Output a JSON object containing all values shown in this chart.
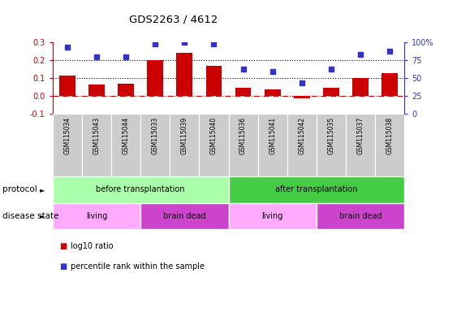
{
  "title": "GDS2263 / 4612",
  "samples": [
    "GSM115034",
    "GSM115043",
    "GSM115044",
    "GSM115033",
    "GSM115039",
    "GSM115040",
    "GSM115036",
    "GSM115041",
    "GSM115042",
    "GSM115035",
    "GSM115037",
    "GSM115038"
  ],
  "log10_ratio": [
    0.115,
    0.062,
    0.07,
    0.2,
    0.24,
    0.17,
    0.045,
    0.038,
    -0.012,
    0.045,
    0.1,
    0.128
  ],
  "percentile_rank": [
    93,
    80,
    79,
    97,
    100,
    98,
    62,
    59,
    43,
    63,
    83,
    87
  ],
  "bar_color": "#cc0000",
  "dot_color": "#3333cc",
  "ylim_left": [
    -0.1,
    0.3
  ],
  "ylim_right": [
    0,
    100
  ],
  "yticks_left": [
    -0.1,
    0.0,
    0.1,
    0.2,
    0.3
  ],
  "yticks_right": [
    0,
    25,
    50,
    75,
    100
  ],
  "ytick_labels_right": [
    "0",
    "25",
    "50",
    "75",
    "100%"
  ],
  "hline_y": [
    0.1,
    0.2
  ],
  "zero_line_y": 0.0,
  "protocol_groups": [
    {
      "label": "before transplantation",
      "start": 0,
      "end": 6,
      "color": "#aaffaa"
    },
    {
      "label": "after transplantation",
      "start": 6,
      "end": 12,
      "color": "#44cc44"
    }
  ],
  "disease_groups": [
    {
      "label": "living",
      "start": 0,
      "end": 3,
      "color": "#ffaaff"
    },
    {
      "label": "brain dead",
      "start": 3,
      "end": 6,
      "color": "#cc44cc"
    },
    {
      "label": "living",
      "start": 6,
      "end": 9,
      "color": "#ffaaff"
    },
    {
      "label": "brain dead",
      "start": 9,
      "end": 12,
      "color": "#cc44cc"
    }
  ],
  "legend_items": [
    {
      "label": "log10 ratio",
      "color": "#cc0000"
    },
    {
      "label": "percentile rank within the sample",
      "color": "#3333cc"
    }
  ],
  "protocol_label": "protocol",
  "disease_label": "disease state",
  "xticklabel_bg": "#cccccc"
}
